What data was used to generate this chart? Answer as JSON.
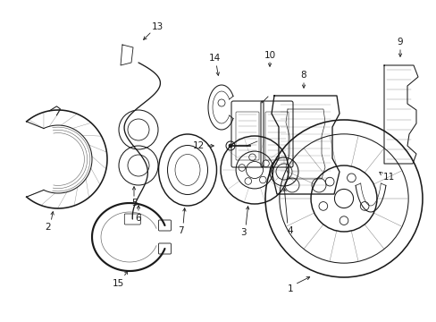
{
  "bg_color": "#ffffff",
  "line_color": "#1a1a1a",
  "fig_width": 4.89,
  "fig_height": 3.6,
  "dpi": 100,
  "lw": 0.75,
  "fontsize": 7.5
}
